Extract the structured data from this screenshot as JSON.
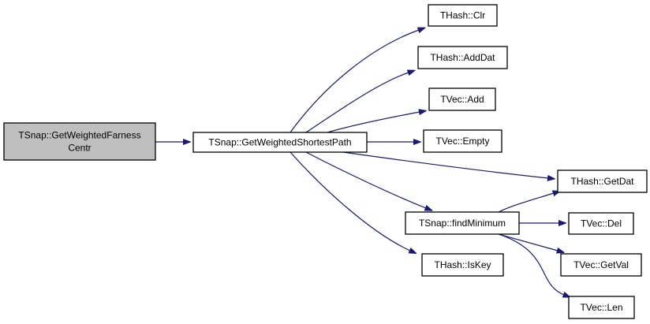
{
  "graph": {
    "edge_color": "#191970",
    "root_fill": "#bfbfbf",
    "node_fill": "#ffffff",
    "nodes": [
      {
        "id": "farness",
        "lines": [
          "TSnap::GetWeightedFarness",
          "Centr"
        ],
        "root": true
      },
      {
        "id": "shortest",
        "lines": [
          "TSnap::GetWeightedShortestPath"
        ]
      },
      {
        "id": "clr",
        "lines": [
          "THash::Clr"
        ]
      },
      {
        "id": "adddat",
        "lines": [
          "THash::AddDat"
        ]
      },
      {
        "id": "add",
        "lines": [
          "TVec::Add"
        ]
      },
      {
        "id": "empty",
        "lines": [
          "TVec::Empty"
        ]
      },
      {
        "id": "getdat",
        "lines": [
          "THash::GetDat"
        ]
      },
      {
        "id": "findmin",
        "lines": [
          "TSnap::findMinimum"
        ]
      },
      {
        "id": "del",
        "lines": [
          "TVec::Del"
        ]
      },
      {
        "id": "iskey",
        "lines": [
          "THash::IsKey"
        ]
      },
      {
        "id": "getval",
        "lines": [
          "TVec::GetVal"
        ]
      },
      {
        "id": "len",
        "lines": [
          "TVec::Len"
        ]
      }
    ],
    "edges": [
      [
        "farness",
        "shortest"
      ],
      [
        "shortest",
        "clr"
      ],
      [
        "shortest",
        "adddat"
      ],
      [
        "shortest",
        "add"
      ],
      [
        "shortest",
        "empty"
      ],
      [
        "shortest",
        "getdat"
      ],
      [
        "shortest",
        "findmin"
      ],
      [
        "shortest",
        "iskey"
      ],
      [
        "findmin",
        "getdat"
      ],
      [
        "findmin",
        "del"
      ],
      [
        "findmin",
        "getval"
      ],
      [
        "findmin",
        "len"
      ]
    ]
  }
}
